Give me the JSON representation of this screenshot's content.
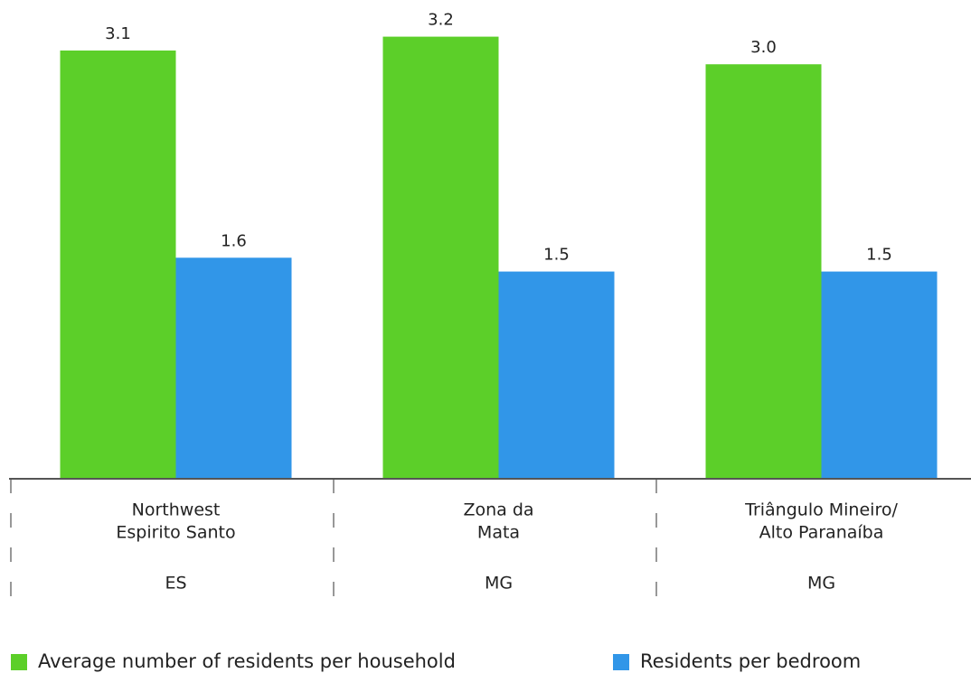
{
  "chart_data": {
    "type": "bar",
    "categories": [
      [
        "Northwest",
        "Espirito Santo"
      ],
      [
        "Zona da",
        "Mata"
      ],
      [
        "Triângulo Mineiro/",
        "Alto Paranaíba"
      ]
    ],
    "states": [
      "ES",
      "MG",
      "MG"
    ],
    "series": [
      {
        "name": "Average number of residents per household",
        "color": "#5ccf29",
        "values": [
          3.1,
          3.2,
          3.0
        ],
        "value_labels": [
          "3.1",
          "3.2",
          "3.0"
        ]
      },
      {
        "name": "Residents per bedroom",
        "color": "#3196e8",
        "values": [
          1.6,
          1.5,
          1.5
        ],
        "value_labels": [
          "1.6",
          "1.5",
          "1.5"
        ]
      }
    ],
    "ylim": [
      0,
      3.4
    ]
  }
}
